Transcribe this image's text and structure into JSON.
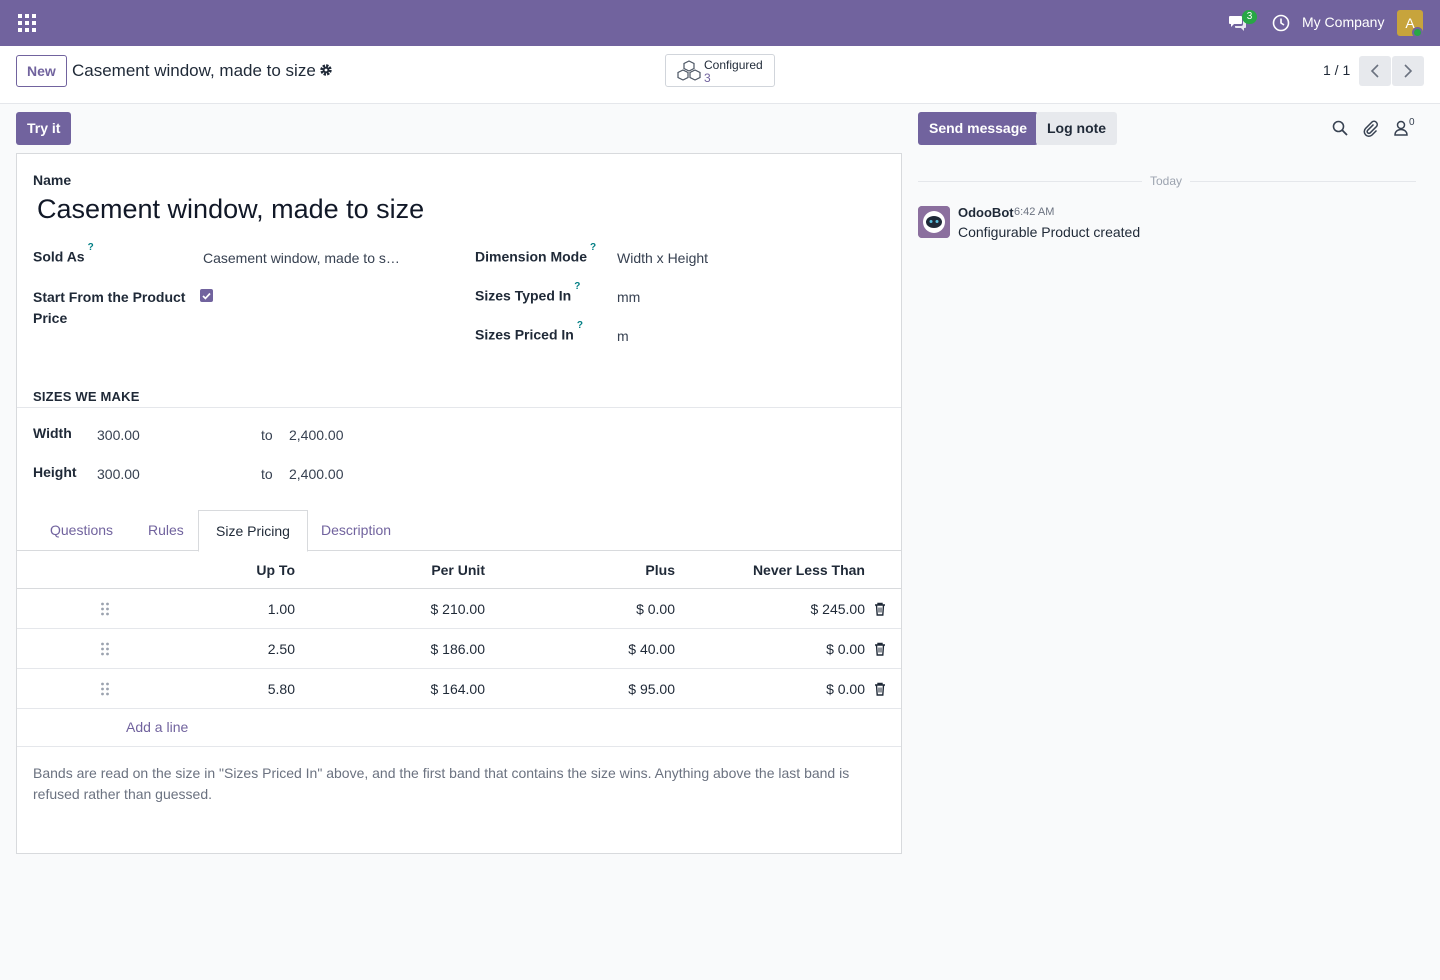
{
  "navbar": {
    "chat_count": "3",
    "company": "My Company",
    "avatar_letter": "A"
  },
  "control": {
    "new_label": "New",
    "title": "Casement window, made to size",
    "smart_button": {
      "label": "Configured",
      "count": "3"
    },
    "pager": "1 / 1"
  },
  "form": {
    "try_label": "Try it",
    "name_label": "Name",
    "name_value": "Casement window, made to size",
    "sold_as_label": "Sold As",
    "sold_as_value": "Casement window, made to s…",
    "start_from_label": "Start From the Product Price",
    "start_from_checked": true,
    "dimension_mode_label": "Dimension Mode",
    "dimension_mode_value": "Width x Height",
    "sizes_typed_label": "Sizes Typed In",
    "sizes_typed_value": "mm",
    "sizes_priced_label": "Sizes Priced In",
    "sizes_priced_value": "m",
    "help_mark": "?",
    "sizes_section": "SIZES WE MAKE",
    "to_label": "to",
    "width": {
      "label": "Width",
      "min": "300.00",
      "max": "2,400.00"
    },
    "height": {
      "label": "Height",
      "min": "300.00",
      "max": "2,400.00"
    },
    "tabs": [
      "Questions",
      "Rules",
      "Size Pricing",
      "Description"
    ],
    "active_tab": "Size Pricing",
    "grid": {
      "headers": {
        "up_to": "Up To",
        "per_unit": "Per Unit",
        "plus": "Plus",
        "never_less": "Never Less Than"
      },
      "rows": [
        {
          "up_to": "1.00",
          "per_unit": "$ 210.00",
          "plus": "$ 0.00",
          "never_less": "$ 245.00"
        },
        {
          "up_to": "2.50",
          "per_unit": "$ 186.00",
          "plus": "$ 40.00",
          "never_less": "$ 0.00"
        },
        {
          "up_to": "5.80",
          "per_unit": "$ 164.00",
          "plus": "$ 95.00",
          "never_less": "$ 0.00"
        }
      ],
      "add_line": "Add a line"
    },
    "note": "Bands are read on the size in \"Sizes Priced In\" above, and the first band that contains the size wins. Anything above the last band is refused rather than guessed."
  },
  "chatter": {
    "send_label": "Send message",
    "log_label": "Log note",
    "follower_count": "0",
    "date_label": "Today",
    "message": {
      "author": "OdooBot",
      "time": "6:42 AM",
      "body": "Configurable Product created"
    }
  },
  "colors": {
    "brand": "#71639e",
    "success": "#28a745",
    "help": "#017e84"
  }
}
